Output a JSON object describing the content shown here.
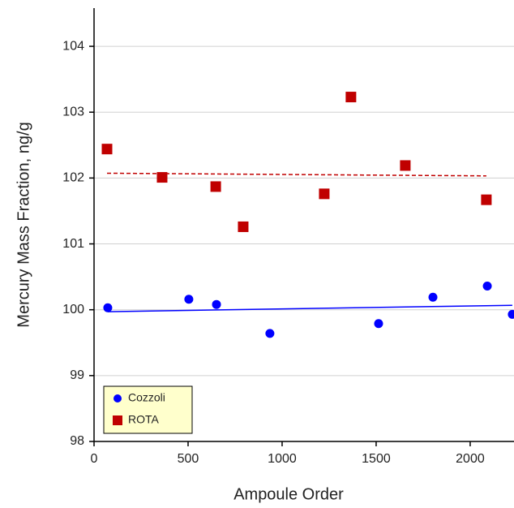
{
  "chart_data": {
    "type": "scatter",
    "x_label": "Ampoule Order",
    "y_label": "Mercury Mass Fraction, ng/g",
    "xlim": [
      0,
      2233
    ],
    "xticks": [
      0,
      500,
      1000,
      1500,
      2000
    ],
    "ylim": [
      98,
      104.58
    ],
    "yticks": [
      98,
      99,
      100,
      101,
      102,
      103,
      104
    ],
    "grid": true,
    "legend": "lower left",
    "series": [
      {
        "name": "Cozzoli",
        "color": "#0000ff",
        "marker": "circle",
        "trendline": "solid",
        "x": [
          73,
          504,
          651,
          935,
          1513,
          1802,
          2091,
          2224
        ],
        "values": [
          100.03,
          100.16,
          100.08,
          99.64,
          99.79,
          100.19,
          100.36,
          99.93
        ]
      },
      {
        "name": "ROTA",
        "color": "#c00000",
        "marker": "square",
        "trendline": "dashed",
        "x": [
          69,
          362,
          647,
          793,
          1224,
          1366,
          1655,
          2086
        ],
        "values": [
          102.44,
          102.01,
          101.87,
          101.26,
          101.76,
          103.23,
          102.19,
          101.67
        ]
      }
    ]
  }
}
